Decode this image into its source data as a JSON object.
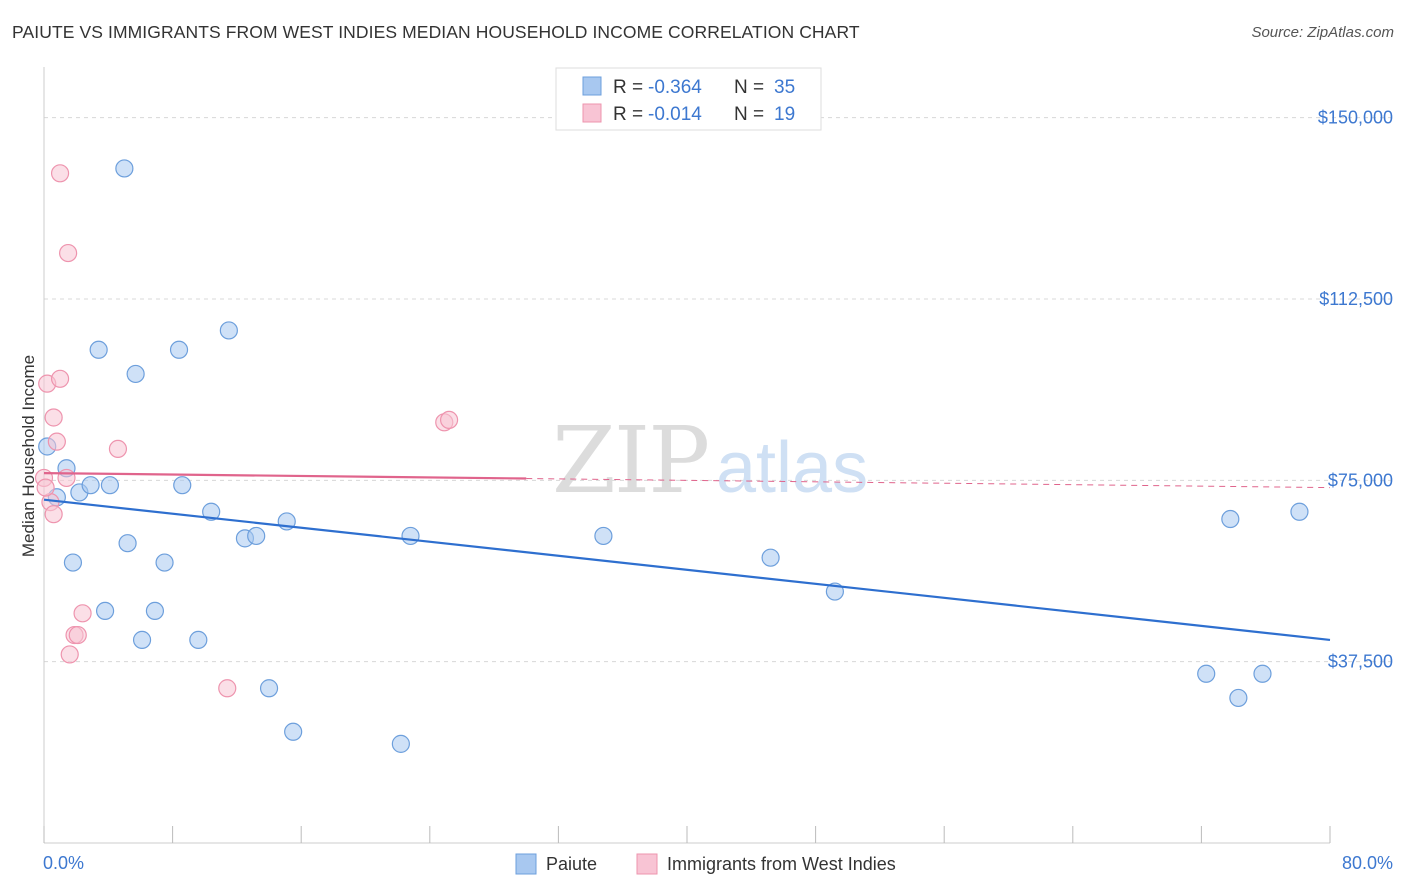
{
  "header": {
    "title": "PAIUTE VS IMMIGRANTS FROM WEST INDIES MEDIAN HOUSEHOLD INCOME CORRELATION CHART",
    "source": "Source: ZipAtlas.com"
  },
  "watermark": {
    "part1": "ZIP",
    "part2": "atlas"
  },
  "chart_data": {
    "type": "scatter",
    "ylabel": "Median Household Income",
    "x_tick_labels": {
      "min": "0.0%",
      "max": "80.0%"
    },
    "xlim": [
      0,
      80
    ],
    "ylim": [
      0,
      158000
    ],
    "y_ticks": [
      {
        "value": 150000,
        "label": "$150,000"
      },
      {
        "value": 112500,
        "label": "$112,500"
      },
      {
        "value": 75000,
        "label": "$75,000"
      },
      {
        "value": 37500,
        "label": "$37,500"
      }
    ],
    "grid": "horizontal-dashed",
    "stats": [
      {
        "r_label": "R = ",
        "r_value": "-0.364",
        "n_label": "N = ",
        "n_value": "35"
      },
      {
        "r_label": "R = ",
        "r_value": "-0.014",
        "n_label": "N = ",
        "n_value": "19"
      }
    ],
    "series": [
      {
        "name": "Paiute",
        "color": "#a8c8f0",
        "stroke": "#6d9fdc",
        "line_color": "#2e6fcf",
        "trend": {
          "x0": 0,
          "y0": 71000,
          "x1": 80,
          "y1": 42000
        },
        "points": [
          [
            5.0,
            139500
          ],
          [
            11.5,
            106000
          ],
          [
            3.4,
            102000
          ],
          [
            8.4,
            102000
          ],
          [
            5.7,
            97000
          ],
          [
            0.2,
            82000
          ],
          [
            1.4,
            77500
          ],
          [
            0.8,
            71500
          ],
          [
            2.2,
            72500
          ],
          [
            2.9,
            74000
          ],
          [
            4.1,
            74000
          ],
          [
            8.6,
            74000
          ],
          [
            10.4,
            68500
          ],
          [
            15.1,
            66500
          ],
          [
            12.5,
            63000
          ],
          [
            13.2,
            63500
          ],
          [
            22.8,
            63500
          ],
          [
            34.8,
            63500
          ],
          [
            1.8,
            58000
          ],
          [
            5.2,
            62000
          ],
          [
            7.5,
            58000
          ],
          [
            3.8,
            48000
          ],
          [
            6.9,
            48000
          ],
          [
            6.1,
            42000
          ],
          [
            9.6,
            42000
          ],
          [
            14.0,
            32000
          ],
          [
            15.5,
            23000
          ],
          [
            22.2,
            20500
          ],
          [
            45.2,
            59000
          ],
          [
            49.2,
            52000
          ],
          [
            73.8,
            67000
          ],
          [
            78.1,
            68500
          ],
          [
            72.3,
            35000
          ],
          [
            75.8,
            35000
          ],
          [
            74.3,
            30000
          ]
        ]
      },
      {
        "name": "Immigrants from West Indies",
        "color": "#f8c4d4",
        "stroke": "#ee94ae",
        "line_color": "#e0648c",
        "trend": {
          "x0": 0,
          "y0": 76500,
          "x1": 80,
          "y1": 73500
        },
        "solid_until_x": 30,
        "points": [
          [
            1.0,
            138500
          ],
          [
            1.5,
            122000
          ],
          [
            0.2,
            95000
          ],
          [
            1.0,
            96000
          ],
          [
            0.6,
            88000
          ],
          [
            0.8,
            83000
          ],
          [
            4.6,
            81500
          ],
          [
            24.9,
            87000
          ],
          [
            25.2,
            87500
          ],
          [
            0.0,
            75500
          ],
          [
            1.4,
            75500
          ],
          [
            0.4,
            70500
          ],
          [
            0.6,
            68000
          ],
          [
            2.4,
            47500
          ],
          [
            1.9,
            43000
          ],
          [
            2.1,
            43000
          ],
          [
            1.6,
            39000
          ],
          [
            11.4,
            32000
          ],
          [
            0.1,
            73500
          ]
        ]
      }
    ]
  }
}
